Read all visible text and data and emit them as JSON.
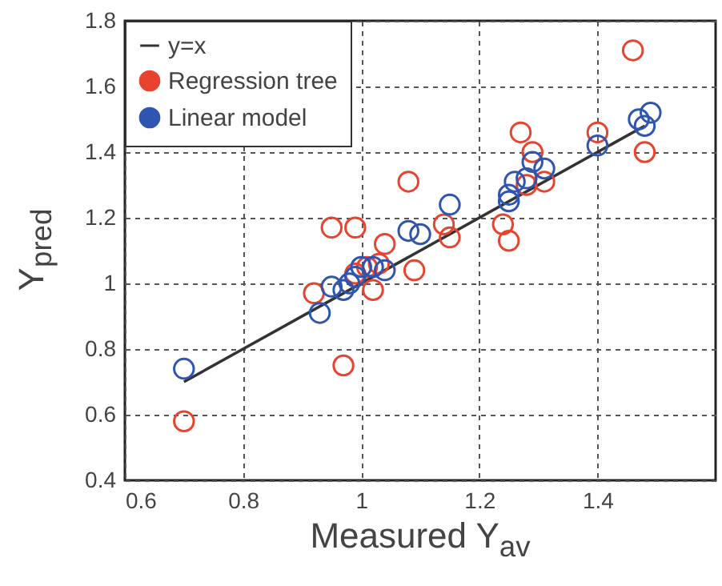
{
  "chart_data": {
    "type": "scatter",
    "xlabel": "Measured Y$_{av}$",
    "ylabel": "Y$_{pred}$",
    "xlim": [
      0.6,
      1.6
    ],
    "xticks": [
      0.6,
      0.8,
      1,
      1.2,
      1.4
    ],
    "ylim": [
      0.4,
      1.8
    ],
    "yticks": [
      0.4,
      0.6,
      0.8,
      1,
      1.2,
      1.4,
      1.6,
      1.8
    ],
    "grid": true,
    "legend": "top left",
    "line_style": "solid",
    "series": [
      {
        "name": "y=x",
        "type": "line",
        "color": "#333333",
        "x": [
          0.7,
          1.48
        ],
        "values": [
          0.7,
          1.48
        ]
      },
      {
        "name": "Regression tree",
        "marker": "circle",
        "color": "#e8432e",
        "x": [
          0.7,
          0.97,
          0.92,
          1.02,
          1.09,
          1.04,
          0.95,
          0.99,
          1.08,
          1.15,
          1.14,
          1.24,
          1.25,
          1.28,
          1.31,
          1.27,
          1.29,
          1.4,
          1.46,
          1.48,
          0.99,
          1.01,
          1.03
        ],
        "values": [
          0.58,
          0.75,
          0.97,
          0.98,
          1.04,
          1.12,
          1.17,
          1.17,
          1.31,
          1.14,
          1.18,
          1.18,
          1.13,
          1.3,
          1.31,
          1.46,
          1.4,
          1.46,
          1.71,
          1.4,
          1.03,
          1.05,
          1.06
        ]
      },
      {
        "name": "Linear model",
        "marker": "circle",
        "color": "#2f55b0",
        "x": [
          0.7,
          0.93,
          0.95,
          0.97,
          0.98,
          0.99,
          1.0,
          1.02,
          1.04,
          1.08,
          1.1,
          1.15,
          1.25,
          1.25,
          1.26,
          1.28,
          1.29,
          1.31,
          1.4,
          1.47,
          1.49,
          1.48
        ],
        "values": [
          0.74,
          0.91,
          0.99,
          0.98,
          1.0,
          1.02,
          1.05,
          1.05,
          1.04,
          1.16,
          1.15,
          1.24,
          1.27,
          1.25,
          1.31,
          1.32,
          1.37,
          1.35,
          1.42,
          1.5,
          1.52,
          1.48
        ]
      }
    ]
  }
}
